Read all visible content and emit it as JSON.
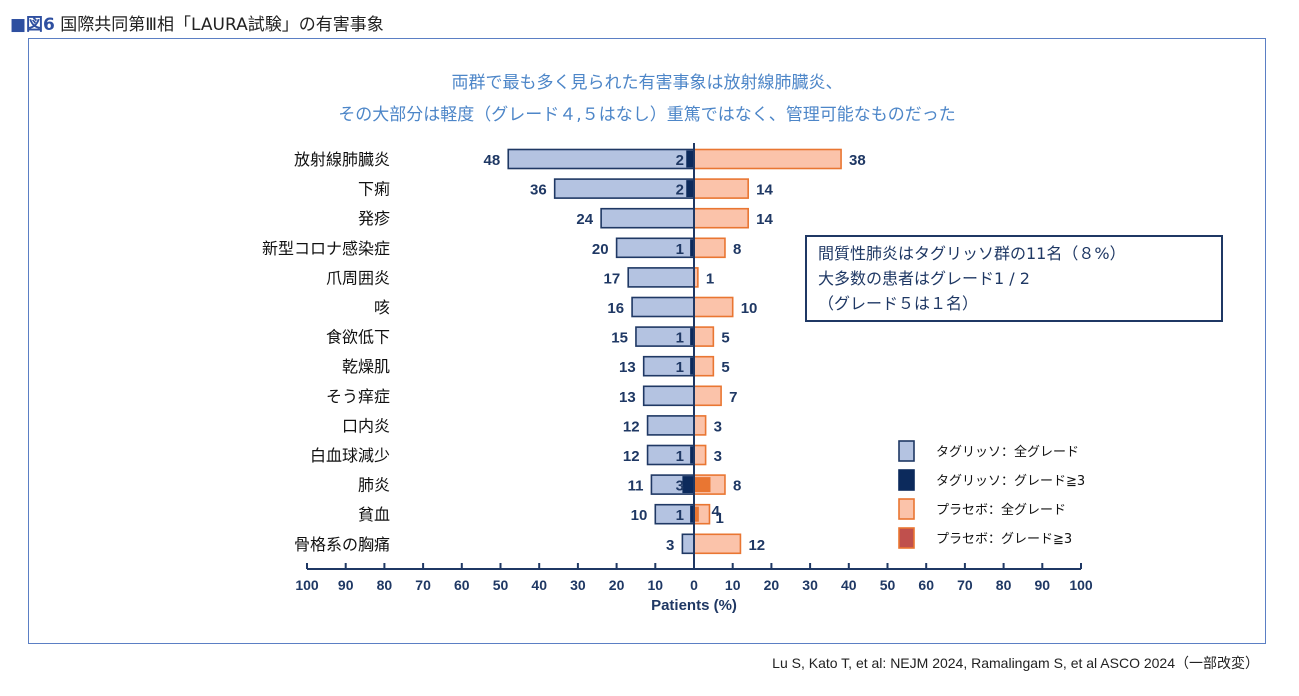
{
  "figure": {
    "label": "■図6",
    "title": "国際共同第Ⅲ相「LAURA試験」の有害事象"
  },
  "headline": {
    "line1": "両群で最も多く見られた有害事象は放射線肺臓炎、",
    "line2": "その大部分は軽度（グレード４,５はなし）重篤ではなく、管理可能なものだった"
  },
  "annotation": {
    "line1": "間質性肺炎はタグリッソ群の11名（８%）",
    "line2": "大多数の患者はグレード1 / 2",
    "line3": "（グレード５は１名）"
  },
  "citation": "Lu S, Kato T, et al: NEJM 2024, Ramalingam S, et al ASCO 2024（一部改変）",
  "colors": {
    "tagrisso_all": "#b4c3e1",
    "tagrisso_g3": "#0c2a5c",
    "placebo_all": "#fbc3aa",
    "placebo_g3": "#e97632",
    "placebo_g3_legend": "#c0504d",
    "tagrisso_border": "#1f3864",
    "placebo_border": "#e97632",
    "axis": "#1f3864",
    "headline": "#4d86c8"
  },
  "chart_data": {
    "type": "bar",
    "orientation": "horizontal-butterfly",
    "xlabel": "Patients (%)",
    "xlim": [
      -100,
      100
    ],
    "x_ticks": [
      -100,
      -90,
      -80,
      -70,
      -60,
      -50,
      -40,
      -30,
      -20,
      -10,
      0,
      10,
      20,
      30,
      40,
      50,
      60,
      70,
      80,
      90,
      100
    ],
    "x_tick_labels": [
      "100",
      "90",
      "80",
      "70",
      "60",
      "50",
      "40",
      "30",
      "20",
      "10",
      "0",
      "10",
      "20",
      "30",
      "40",
      "50",
      "60",
      "70",
      "80",
      "90",
      "100"
    ],
    "categories": [
      "放射線肺臓炎",
      "下痢",
      "発疹",
      "新型コロナ感染症",
      "爪周囲炎",
      "咳",
      "食欲低下",
      "乾燥肌",
      "そう痒症",
      "口内炎",
      "白血球減少",
      "肺炎",
      "貧血",
      "骨格系の胸痛"
    ],
    "series": [
      {
        "name": "タグリッソ：全グレード",
        "side": "left",
        "values": [
          48,
          36,
          24,
          20,
          17,
          16,
          15,
          13,
          13,
          12,
          12,
          11,
          10,
          3
        ]
      },
      {
        "name": "タグリッソ：グレード≧3",
        "side": "left",
        "values": [
          2,
          2,
          0,
          1,
          0,
          0,
          1,
          1,
          0,
          0,
          1,
          3,
          1,
          0
        ]
      },
      {
        "name": "プラセボ：全グレード",
        "side": "right",
        "values": [
          38,
          14,
          14,
          8,
          1,
          10,
          5,
          5,
          7,
          3,
          3,
          8,
          4,
          12
        ]
      },
      {
        "name": "プラセボ：グレード≧3",
        "side": "right",
        "values": [
          0,
          0,
          0,
          0,
          0,
          0,
          0,
          0,
          0,
          0,
          0,
          4,
          1,
          0
        ]
      }
    ],
    "label_text": {
      "tagrisso_all": [
        "48",
        "36",
        "24",
        "20",
        "17",
        "16",
        "15",
        "13",
        "13",
        "12",
        "12",
        "11",
        "10",
        "3"
      ],
      "tagrisso_g3": [
        "2",
        "2",
        "",
        "1",
        "",
        "",
        "1",
        "1",
        "",
        "",
        "1",
        "3",
        "1",
        ""
      ],
      "placebo_all": [
        "38",
        "14",
        "14",
        "8",
        "1",
        "10",
        "5",
        "5",
        "7",
        "3",
        "3",
        "8",
        "4",
        "12"
      ],
      "placebo_g3": [
        "",
        "",
        "",
        "",
        "",
        "",
        "",
        "",
        "",
        "",
        "",
        "",
        "1",
        ""
      ]
    },
    "legend": {
      "placement": "right",
      "entries": [
        "タグリッソ：全グレード",
        "タグリッソ：グレード≧3",
        "プラセボ：全グレード",
        "プラセボ：グレード≧3"
      ]
    }
  }
}
